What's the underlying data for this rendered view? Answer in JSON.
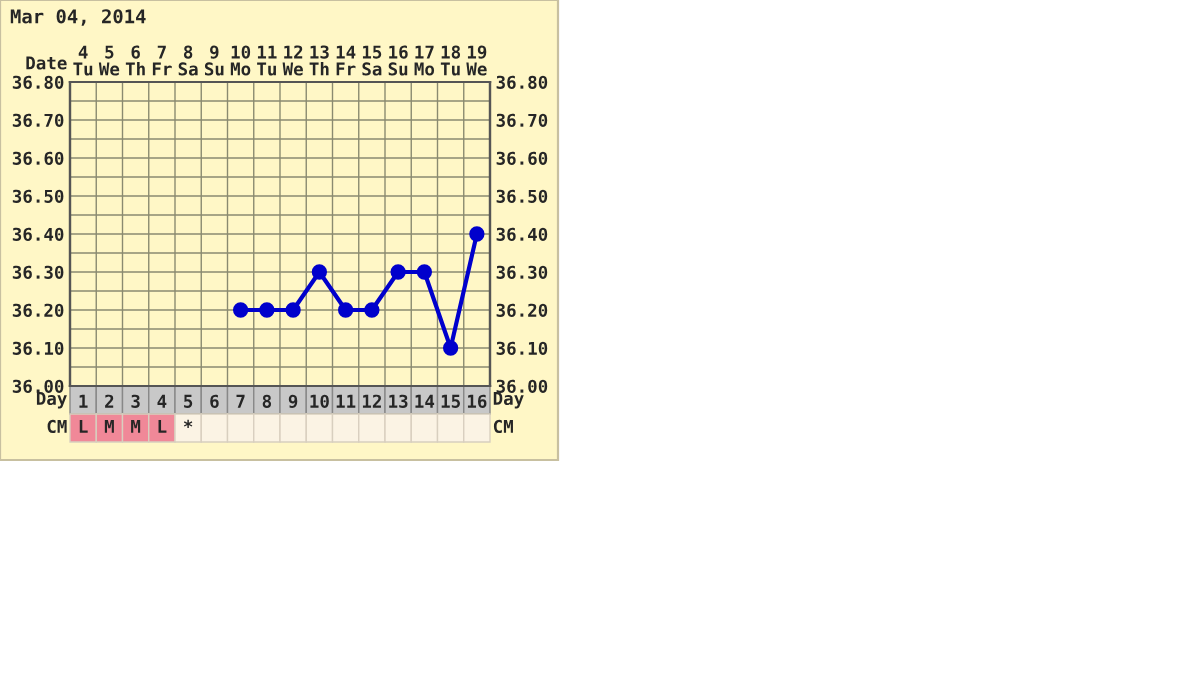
{
  "chart_data": {
    "type": "line",
    "title": "Mar 04, 2014",
    "categories": [
      "1",
      "2",
      "3",
      "4",
      "5",
      "6",
      "7",
      "8",
      "9",
      "10",
      "11",
      "12",
      "13",
      "14",
      "15",
      "16"
    ],
    "series": [
      {
        "color": "#0000cc",
        "values": [
          null,
          null,
          null,
          null,
          null,
          null,
          36.2,
          36.2,
          36.2,
          36.3,
          36.2,
          36.2,
          36.3,
          36.3,
          36.1,
          36.4
        ]
      }
    ],
    "ylim": [
      36.0,
      36.8
    ],
    "yticks": [
      {
        "value": 36.0,
        "label": "36.00"
      },
      {
        "value": 36.05,
        "label": null
      },
      {
        "value": 36.1,
        "label": "36.10"
      },
      {
        "value": 36.15,
        "label": null
      },
      {
        "value": 36.2,
        "label": "36.20"
      },
      {
        "value": 36.25,
        "label": null
      },
      {
        "value": 36.3,
        "label": "36.30"
      },
      {
        "value": 36.35,
        "label": null
      },
      {
        "value": 36.4,
        "label": "36.40"
      },
      {
        "value": 36.45,
        "label": null
      },
      {
        "value": 36.5,
        "label": "36.50"
      },
      {
        "value": 36.55,
        "label": null
      },
      {
        "value": 36.6,
        "label": "36.60"
      },
      {
        "value": 36.65,
        "label": null
      },
      {
        "value": 36.7,
        "label": "36.70"
      },
      {
        "value": 36.75,
        "label": null
      },
      {
        "value": 36.8,
        "label": "36.80"
      }
    ],
    "y2lim": [
      36.0,
      36.8
    ],
    "y2ticks": [
      {
        "value": 36.0,
        "label": "36.00"
      },
      {
        "value": 36.05,
        "label": null
      },
      {
        "value": 36.1,
        "label": "36.10"
      },
      {
        "value": 36.15,
        "label": null
      },
      {
        "value": 36.2,
        "label": "36.20"
      },
      {
        "value": 36.25,
        "label": null
      },
      {
        "value": 36.3,
        "label": "36.30"
      },
      {
        "value": 36.35,
        "label": null
      },
      {
        "value": 36.4,
        "label": "36.40"
      },
      {
        "value": 36.45,
        "label": null
      },
      {
        "value": 36.5,
        "label": "36.50"
      },
      {
        "value": 36.55,
        "label": null
      },
      {
        "value": 36.6,
        "label": "36.60"
      },
      {
        "value": 36.65,
        "label": null
      },
      {
        "value": 36.7,
        "label": "36.70"
      },
      {
        "value": 36.75,
        "label": null
      },
      {
        "value": 36.8,
        "label": "36.80"
      }
    ],
    "annotations": [
      "Date",
      "4\nTu",
      "5\nWe",
      "6\nTh",
      "7\nFr",
      "8\nSa",
      "9\nSu",
      "10\nMo",
      "11\nTu",
      "12\nWe",
      "13\nTh",
      "14\nFr",
      "15\nSa",
      "16\nSu",
      "17\nMo",
      "18\nTu",
      "19\nWe",
      "Day",
      "Day",
      "CM",
      "CM",
      "L",
      "M",
      "M",
      "L",
      "*"
    ],
    "grid": true,
    "legend": false,
    "marker": "circle",
    "line_style": "solid"
  }
}
